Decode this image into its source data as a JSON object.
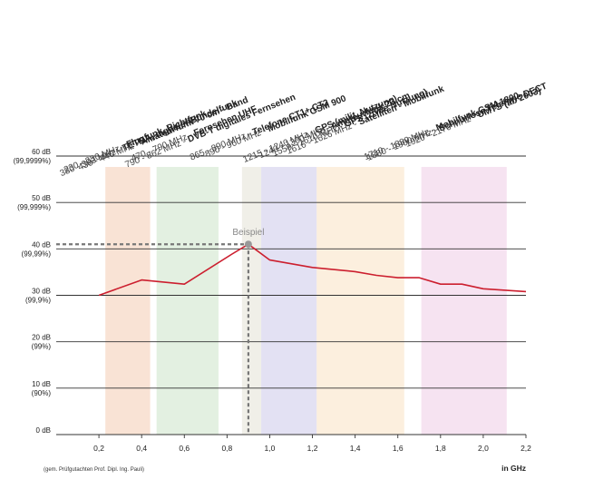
{
  "chart_data": {
    "type": "line",
    "xlim": [
      0.0,
      2.2
    ],
    "ylim": [
      0,
      60
    ],
    "x_ticks": [
      "0,2",
      "0,4",
      "0,6",
      "0,8",
      "1,0",
      "1,2",
      "1,4",
      "1,6",
      "1,8",
      "2,0",
      "2,2"
    ],
    "x_tick_values": [
      0.2,
      0.4,
      0.6,
      0.8,
      1.0,
      1.2,
      1.4,
      1.6,
      1.8,
      2.0,
      2.2
    ],
    "y_ticks": [
      {
        "value": 60,
        "db": "60 dB",
        "pct": "(99,9999%)"
      },
      {
        "value": 50,
        "db": "50 dB",
        "pct": "(99,999%)"
      },
      {
        "value": 40,
        "db": "40 dB",
        "pct": "(99,99%)"
      },
      {
        "value": 30,
        "db": "30 dB",
        "pct": "(99,9%)"
      },
      {
        "value": 20,
        "db": "20 dB",
        "pct": "(99%)"
      },
      {
        "value": 10,
        "db": "10 dB",
        "pct": "(90%)"
      },
      {
        "value": 0,
        "db": "0 dB",
        "pct": ""
      }
    ],
    "xlabel": "in GHz",
    "note": "(gem. Prüfgutachten Prof. Dipl. Ing. Pauli)",
    "line_color": "#cc1f2f",
    "series": [
      {
        "x": [
          0.2,
          0.4,
          0.6,
          0.82,
          0.9,
          1.0,
          1.2,
          1.4,
          1.5,
          1.6,
          1.7,
          1.8,
          1.9,
          2.0,
          2.2
        ],
        "y": [
          30,
          33.3,
          32.4,
          38.8,
          41,
          37.6,
          36,
          35.1,
          34.3,
          33.8,
          33.8,
          32.4,
          32.4,
          31.4,
          30.8
        ]
      }
    ],
    "example": {
      "label": "Beispiel",
      "x": 0.9,
      "y": 41
    },
    "bands": [
      {
        "from": 0.23,
        "to": 0.44,
        "color": "#f8dccb"
      },
      {
        "from": 0.47,
        "to": 0.76,
        "color": "#dcecd9"
      },
      {
        "from": 0.87,
        "to": 0.96,
        "color": "#ecebe2"
      },
      {
        "from": 0.96,
        "to": 1.22,
        "color": "#dcdaf0"
      },
      {
        "from": 1.22,
        "to": 1.63,
        "color": "#fbebd6"
      },
      {
        "from": 1.71,
        "to": 2.11,
        "color": "#f4dced"
      }
    ],
    "frequency_labels": [
      {
        "range": "230 - 230 MHz -",
        "service": "Flugfunk, Richtfunk"
      },
      {
        "range": "380 - 393 MHz -",
        "service": "TETRA, digitaler Bündelfunk"
      },
      {
        "range": "430 - 440 MHz -",
        "service": "Amateurfunk 70 cm - Band"
      },
      {
        "range": "470 - 790 MHz -",
        "service": "Fernsehen UHF"
      },
      {
        "range": "790 - 862 MHz -",
        "service": "DVB-T digitales Fernsehen"
      },
      {
        "range": "865 - 890 MHz -",
        "service": "Telefone CT1+ CT2"
      },
      {
        "range": "890 - 960 MHz -",
        "service": "Mobilfunk GSM 900"
      },
      {
        "range": "1215 - 1240 MHz -",
        "service": "GPS (milit. Nutzung)"
      },
      {
        "range": "1240 - 1300 MHz -",
        "service": "Amateurfunk 23 cm"
      },
      {
        "range": "1559 - 1610 MHz -",
        "service": "GPS (zivile Nutzung)"
      },
      {
        "range": "1616 - 1626 MHz -",
        "service": "Satelliten - Mobilfunk"
      },
      {
        "range": "1710 - 1880 MHz -",
        "service": "Mobilfunk GSM 1800"
      },
      {
        "range": "1880 - 1900 MHz -",
        "service": "Schnurlose Telefone DECT"
      },
      {
        "range": "1920 - 2170 MHz -",
        "service": "UMTS (ab 2003)"
      }
    ]
  }
}
